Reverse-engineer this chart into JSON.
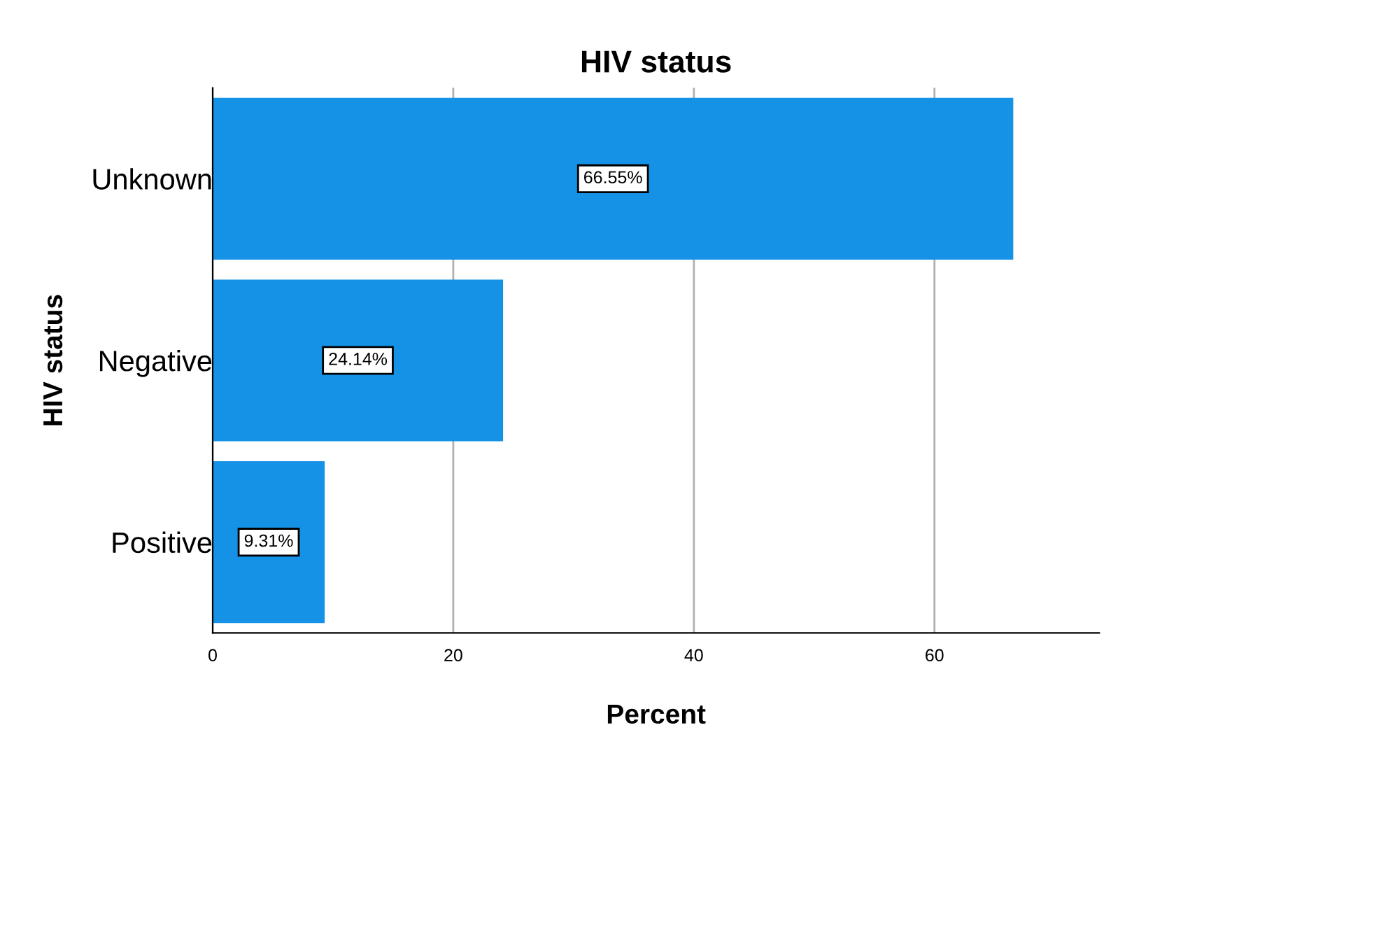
{
  "chart_data": {
    "type": "bar",
    "orientation": "horizontal",
    "title": "HIV status",
    "xlabel": "Percent",
    "ylabel": "HIV status",
    "categories": [
      "Unknown",
      "Negative",
      "Positive"
    ],
    "values": [
      66.55,
      24.14,
      9.31
    ],
    "value_labels": [
      "66.55%",
      "24.14%",
      "9.31%"
    ],
    "color": "#1591e6",
    "xlim": [
      0,
      73.7
    ],
    "xticks": [
      0,
      20,
      40,
      60
    ],
    "grid": "x"
  }
}
